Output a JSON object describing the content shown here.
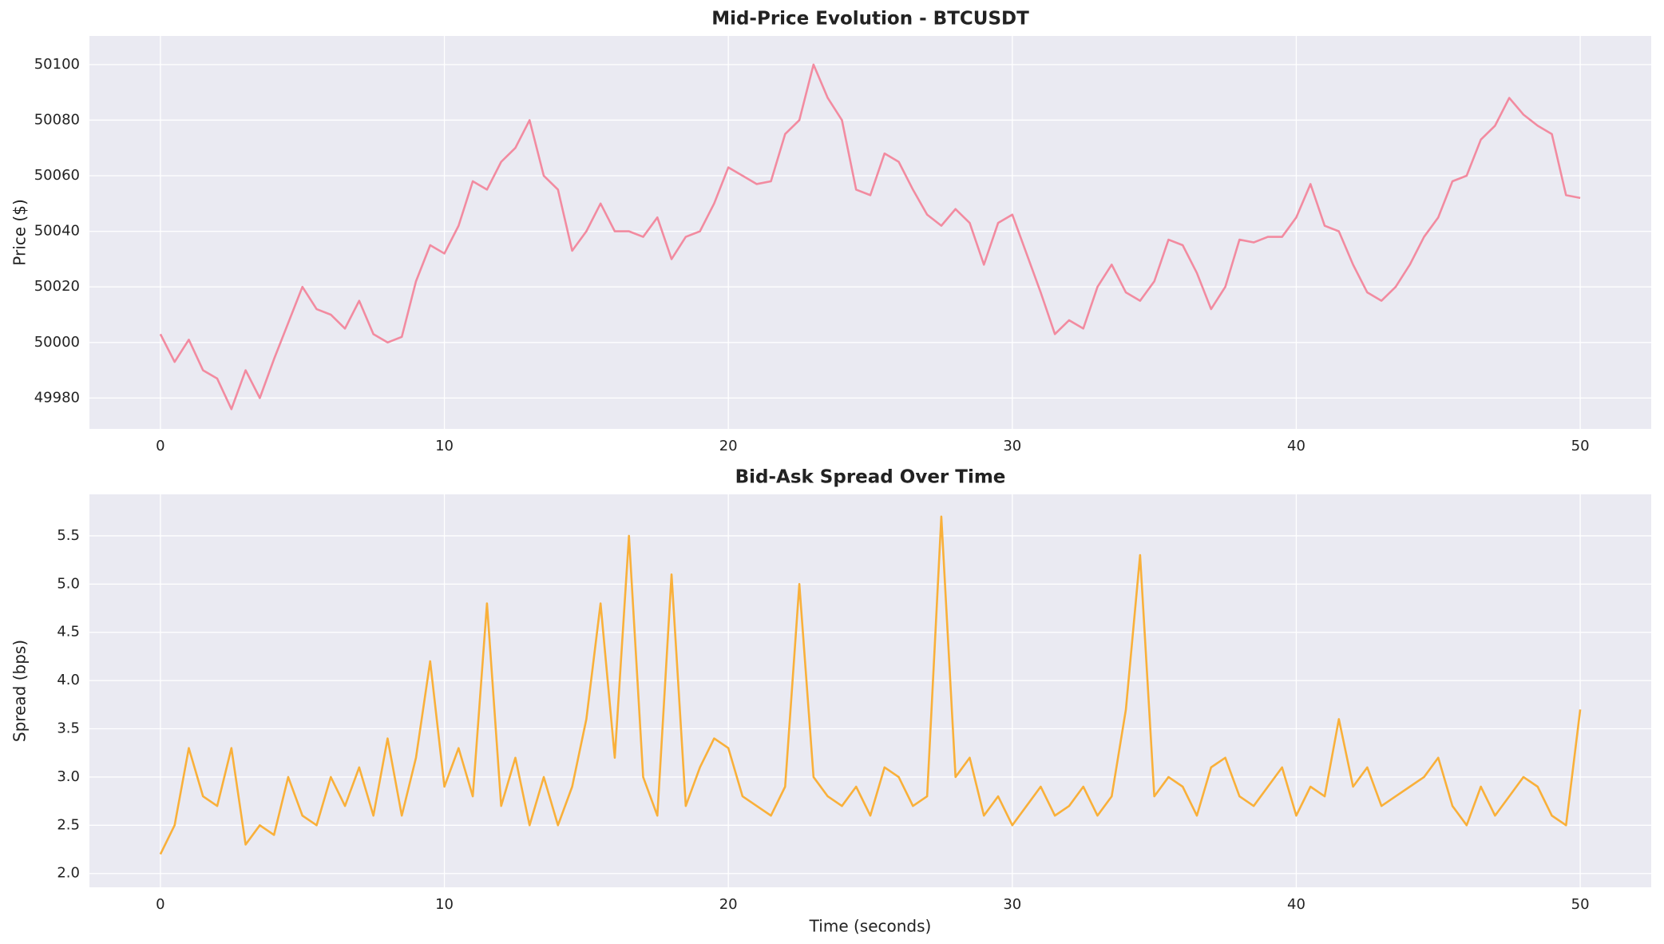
{
  "chart_data": [
    {
      "type": "line",
      "title": "Mid-Price Evolution - BTCUSDT",
      "ylabel": "Price ($)",
      "color": "#f28ba0",
      "grid": true,
      "x": [
        0,
        0.5,
        1,
        1.5,
        2,
        2.5,
        3,
        3.5,
        4,
        4.5,
        5,
        5.5,
        6,
        6.5,
        7,
        7.5,
        8,
        8.5,
        9,
        9.5,
        10,
        10.5,
        11,
        11.5,
        12,
        12.5,
        13,
        13.5,
        14,
        14.5,
        15,
        15.5,
        16,
        16.5,
        17,
        17.5,
        18,
        18.5,
        19,
        19.5,
        20,
        20.5,
        21,
        21.5,
        22,
        22.5,
        23,
        23.5,
        24,
        24.5,
        25,
        25.5,
        26,
        26.5,
        27,
        27.5,
        28,
        28.5,
        29,
        29.5,
        30,
        30.5,
        31,
        31.5,
        32,
        32.5,
        33,
        33.5,
        34,
        34.5,
        35,
        35.5,
        36,
        36.5,
        37,
        37.5,
        38,
        38.5,
        39,
        39.5,
        40,
        40.5,
        41,
        41.5,
        42,
        42.5,
        43,
        43.5,
        44,
        44.5,
        45,
        45.5,
        46,
        46.5,
        47,
        47.5,
        48,
        48.5,
        49,
        49.5,
        50
      ],
      "values": [
        50003,
        49993,
        50001,
        49990,
        49987,
        49976,
        49990,
        49980,
        49994,
        50007,
        50020,
        50012,
        50010,
        50005,
        50015,
        50003,
        50000,
        50002,
        50022,
        50035,
        50032,
        50042,
        50058,
        50055,
        50065,
        50070,
        50080,
        50060,
        50055,
        50033,
        50040,
        50050,
        50040,
        50040,
        50038,
        50045,
        50030,
        50038,
        50040,
        50050,
        50063,
        50060,
        50057,
        50058,
        50075,
        50080,
        50100,
        50088,
        50080,
        50055,
        50053,
        50068,
        50065,
        50055,
        50046,
        50042,
        50048,
        50043,
        50028,
        50043,
        50046,
        50032,
        50018,
        50003,
        50008,
        50005,
        50020,
        50028,
        50018,
        50015,
        50022,
        50037,
        50035,
        50025,
        50012,
        50020,
        50037,
        50036,
        50038,
        50038,
        50045,
        50057,
        50042,
        50040,
        50028,
        50018,
        50015,
        50020,
        50028,
        50038,
        50045,
        50058,
        50060,
        50073,
        50078,
        50088,
        50082,
        50078,
        50075,
        50053,
        50052
      ],
      "xlim": [
        -2.5,
        52.5
      ],
      "xticks": [
        0,
        10,
        20,
        30,
        40,
        50
      ],
      "ylim": [
        49968.9,
        50110.3
      ],
      "yticks": [
        49980,
        50000,
        50020,
        50040,
        50060,
        50080,
        50100
      ]
    },
    {
      "type": "line",
      "title": "Bid-Ask Spread Over Time",
      "ylabel": "Spread (bps)",
      "xlabel": "Time (seconds)",
      "color": "#f9b03a",
      "grid": true,
      "x": [
        0,
        0.5,
        1,
        1.5,
        2,
        2.5,
        3,
        3.5,
        4,
        4.5,
        5,
        5.5,
        6,
        6.5,
        7,
        7.5,
        8,
        8.5,
        9,
        9.5,
        10,
        10.5,
        11,
        11.5,
        12,
        12.5,
        13,
        13.5,
        14,
        14.5,
        15,
        15.5,
        16,
        16.5,
        17,
        17.5,
        18,
        18.5,
        19,
        19.5,
        20,
        20.5,
        21,
        21.5,
        22,
        22.5,
        23,
        23.5,
        24,
        24.5,
        25,
        25.5,
        26,
        26.5,
        27,
        27.5,
        28,
        28.5,
        29,
        29.5,
        30,
        30.5,
        31,
        31.5,
        32,
        32.5,
        33,
        33.5,
        34,
        34.5,
        35,
        35.5,
        36,
        36.5,
        37,
        37.5,
        38,
        38.5,
        39,
        39.5,
        40,
        40.5,
        41,
        41.5,
        42,
        42.5,
        43,
        43.5,
        44,
        44.5,
        45,
        45.5,
        46,
        46.5,
        47,
        47.5,
        48,
        48.5,
        49,
        49.5,
        50
      ],
      "values": [
        2.2,
        2.5,
        3.3,
        2.8,
        2.7,
        3.3,
        2.3,
        2.5,
        2.4,
        3.0,
        2.6,
        2.5,
        3.0,
        2.7,
        3.1,
        2.6,
        3.4,
        2.6,
        3.2,
        4.2,
        2.9,
        3.3,
        2.8,
        4.8,
        2.7,
        3.2,
        2.5,
        3.0,
        2.5,
        2.9,
        3.6,
        4.8,
        3.2,
        5.5,
        3.0,
        2.6,
        5.1,
        2.7,
        3.1,
        3.4,
        3.3,
        2.8,
        2.7,
        2.6,
        2.9,
        5.0,
        3.0,
        2.8,
        2.7,
        2.9,
        2.6,
        3.1,
        3.0,
        2.7,
        2.8,
        5.7,
        3.0,
        3.2,
        2.6,
        2.8,
        2.5,
        2.7,
        2.9,
        2.6,
        2.7,
        2.9,
        2.6,
        2.8,
        3.7,
        5.3,
        2.8,
        3.0,
        2.9,
        2.6,
        3.1,
        3.2,
        2.8,
        2.7,
        2.9,
        3.1,
        2.6,
        2.9,
        2.8,
        3.6,
        2.9,
        3.1,
        2.7,
        2.8,
        2.9,
        3.0,
        3.2,
        2.7,
        2.5,
        2.9,
        2.6,
        2.8,
        3.0,
        2.9,
        2.6,
        2.5,
        3.7
      ],
      "xlim": [
        -2.5,
        52.5
      ],
      "xticks": [
        0,
        10,
        20,
        30,
        40,
        50
      ],
      "ylim": [
        1.857,
        5.93
      ],
      "yticks": [
        {
          "value": 2,
          "label": "2.0"
        },
        2.5,
        {
          "value": 3,
          "label": "3.0"
        },
        3.5,
        {
          "value": 4,
          "label": "4.0"
        },
        4.5,
        {
          "value": 5,
          "label": "5.0"
        },
        5.5
      ]
    }
  ]
}
